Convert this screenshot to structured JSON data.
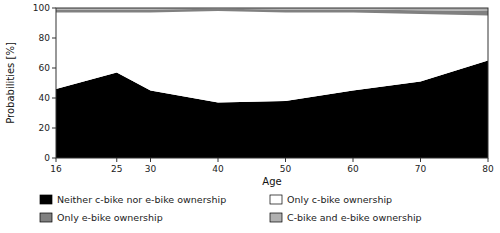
{
  "chart_data": {
    "type": "area",
    "stacked": true,
    "xlabel": "Age",
    "ylabel": "Probabilities [%]",
    "x": [
      16,
      25,
      30,
      40,
      50,
      60,
      70,
      80
    ],
    "series": [
      {
        "name": "Neither c-bike nor e-bike ownership",
        "color": "#000000",
        "values": [
          46,
          57,
          45,
          37,
          38,
          45,
          51,
          65
        ]
      },
      {
        "name": "Only c-bike ownership",
        "color": "#ffffff",
        "values": [
          51,
          40,
          52,
          61,
          59,
          52,
          45,
          30
        ]
      },
      {
        "name": "Only e-bike ownership",
        "color": "#808080",
        "values": [
          2.0,
          2.0,
          2.0,
          1.5,
          2.0,
          2.0,
          2.5,
          3.0
        ]
      },
      {
        "name": "C-bike and e-bike ownership",
        "color": "#b0b0b0",
        "values": [
          1.0,
          1.0,
          1.0,
          0.5,
          1.0,
          1.0,
          1.5,
          2.0
        ]
      }
    ],
    "xlim": [
      16,
      80
    ],
    "ylim": [
      0,
      100
    ],
    "xticks": [
      16,
      25,
      30,
      40,
      50,
      60,
      70,
      80
    ],
    "yticks": [
      0,
      20,
      40,
      60,
      80,
      100
    ],
    "legend": "bottom"
  }
}
